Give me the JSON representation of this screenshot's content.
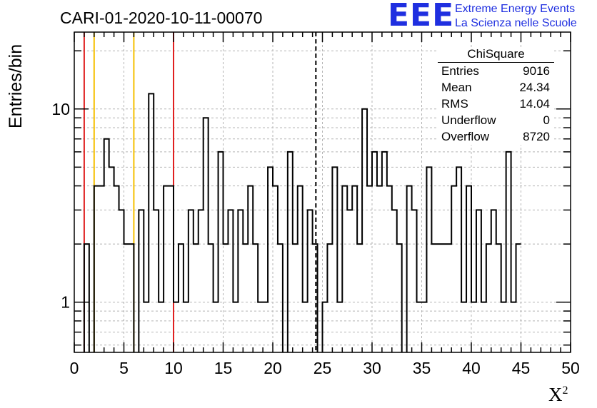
{
  "header": {
    "title": "CARI-01-2020-10-11-00070",
    "logo_mark": "EEE",
    "logo_line1": "Extreme Energy Events",
    "logo_line2": "La Scienza nelle Scuole"
  },
  "stats": {
    "title": "ChiSquare",
    "rows": [
      {
        "label": "Entries",
        "value": "9016"
      },
      {
        "label": "Mean",
        "value": "24.34"
      },
      {
        "label": "RMS",
        "value": "14.04"
      },
      {
        "label": "Underflow",
        "value": "0"
      },
      {
        "label": "Overflow",
        "value": "8720"
      }
    ]
  },
  "chart_data": {
    "type": "step-histogram",
    "title": "CARI-01-2020-10-11-00070",
    "xlabel": "X",
    "xlabel_sup": "2",
    "ylabel": "Entries/bin",
    "xlim": [
      0,
      50
    ],
    "ylim": [
      0.55,
      25
    ],
    "yscale": "log",
    "grid": true,
    "bin_width": 0.5,
    "x_ticks": [
      0,
      5,
      10,
      15,
      20,
      25,
      30,
      35,
      40,
      45,
      50
    ],
    "y_ticks": [
      1,
      10
    ],
    "values": [
      0,
      0,
      2,
      0,
      4,
      4,
      7,
      5,
      4,
      3,
      2,
      2,
      0,
      3,
      1,
      12,
      3,
      1,
      4,
      4,
      1,
      2,
      1,
      3,
      2,
      3,
      9,
      2,
      1,
      6,
      2,
      3,
      1,
      3,
      2,
      4,
      2,
      1,
      1,
      5,
      4,
      2,
      0,
      6,
      2,
      4,
      1,
      3,
      2,
      0,
      1,
      2,
      5,
      1,
      4,
      3,
      4,
      2,
      10,
      4,
      6,
      4,
      6,
      4,
      3,
      2,
      0,
      4,
      3,
      1,
      1,
      5,
      2,
      2,
      2,
      2,
      4,
      5,
      1,
      4,
      1,
      3,
      1,
      2,
      3,
      2,
      1,
      6,
      1,
      2
    ],
    "vertical_lines": [
      {
        "x": 1,
        "color": "#e02020",
        "style": "solid"
      },
      {
        "x": 10,
        "color": "#e02020",
        "style": "solid"
      },
      {
        "x": 2,
        "color": "#f5c000",
        "style": "solid"
      },
      {
        "x": 6,
        "color": "#f5c000",
        "style": "solid"
      },
      {
        "x": 24.34,
        "color": "#000000",
        "style": "dashed"
      }
    ]
  }
}
